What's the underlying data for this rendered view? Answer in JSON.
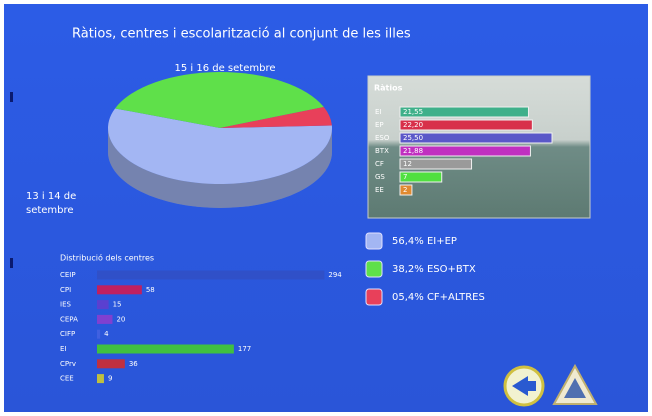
{
  "title": "Ràtios, centres i escolarització al conjunt de les illes",
  "chart_data": [
    {
      "type": "pie",
      "categories": [
        "EI+EP",
        "ESO+BTX",
        "CF+ALTRES"
      ],
      "values": [
        56.4,
        38.2,
        5.4
      ],
      "value_labels": [
        "56,4% EI+EP",
        "38,2% ESO+BTX",
        "05,4% CF+ALTRES"
      ],
      "colors": [
        "#a3b6f3",
        "#5fe04a",
        "#e8405a"
      ],
      "annotations": [
        "15 i 16 de setembre",
        "13 i 14 de setembre"
      ]
    },
    {
      "type": "bar",
      "title": "Ràtios",
      "categories": [
        "EI",
        "EP",
        "ESO",
        "BTX",
        "CF",
        "GS",
        "EE"
      ],
      "values": [
        21.55,
        22.2,
        25.5,
        21.88,
        12,
        7,
        2
      ],
      "value_labels": [
        "21,55",
        "22,20",
        "25,50",
        "21,88",
        "12",
        "7",
        "2"
      ],
      "colors": [
        "#3fb08a",
        "#d8304a",
        "#5a58c8",
        "#c030c0",
        "#9a9a9a",
        "#50e040",
        "#e08a30"
      ],
      "xlim": [
        0,
        26
      ]
    },
    {
      "type": "bar",
      "title": "Distribució dels centres",
      "categories": [
        "CEIP",
        "CPI",
        "IES",
        "CEPA",
        "CIFP",
        "EI",
        "CPrv",
        "CEE"
      ],
      "values": [
        294,
        58,
        15,
        20,
        4,
        177,
        36,
        9
      ],
      "colors": [
        "#3050c8",
        "#c02060",
        "#5a40d0",
        "#8040d0",
        "#4060e0",
        "#40c040",
        "#c03040",
        "#c0c040"
      ],
      "xlim": [
        0,
        300
      ]
    }
  ]
}
